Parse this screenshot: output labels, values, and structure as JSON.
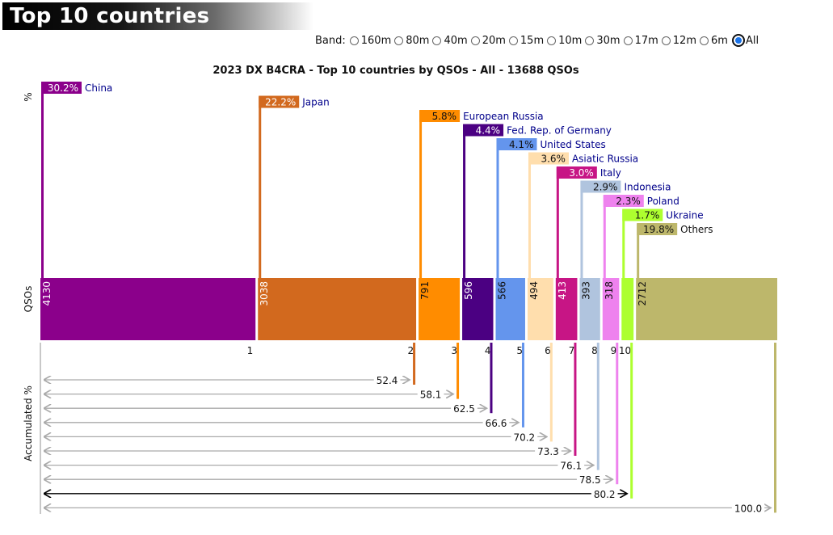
{
  "page": {
    "title": "Top 10 countries"
  },
  "bands": {
    "label": "Band:",
    "options": [
      "160m",
      "80m",
      "40m",
      "20m",
      "15m",
      "10m",
      "30m",
      "17m",
      "12m",
      "6m",
      "All"
    ],
    "selected": "All"
  },
  "chart_data": {
    "type": "bar",
    "title": "2023 DX B4CRA - Top 10 countries by QSOs - All - 13688 QSOs",
    "ylabel_percent": "%",
    "ylabel_qsos": "QSOs",
    "ylabel_accumulated": "Accumulated %",
    "categories": [
      "China",
      "Japan",
      "European Russia",
      "Fed. Rep. of Germany",
      "United States",
      "Asiatic Russia",
      "Italy",
      "Indonesia",
      "Poland",
      "Ukraine",
      "Others"
    ],
    "ranks": [
      "1",
      "2",
      "3",
      "4",
      "5",
      "6",
      "7",
      "8",
      "9",
      "10",
      ""
    ],
    "qsos": [
      4130,
      3038,
      791,
      596,
      566,
      494,
      413,
      393,
      318,
      231,
      2712
    ],
    "qso_labels": [
      "4130",
      "3038",
      "791",
      "596",
      "566",
      "494",
      "413",
      "393",
      "318",
      "",
      "2712"
    ],
    "percent_labels": [
      "30.2%",
      "22.2%",
      "5.8%",
      "4.4%",
      "4.1%",
      "3.6%",
      "3.0%",
      "2.9%",
      "2.3%",
      "1.7%",
      "19.8%"
    ],
    "accumulated": [
      "52.4",
      "58.1",
      "62.5",
      "66.6",
      "70.2",
      "73.3",
      "76.1",
      "78.5",
      "80.2",
      "100.0"
    ],
    "colors": [
      "#8b008b",
      "#d2691e",
      "#ff8c00",
      "#4b0082",
      "#6495ed",
      "#ffdead",
      "#c71585",
      "#b0c4de",
      "#ee82ee",
      "#adff2f",
      "#bdb76b"
    ],
    "text_colors": [
      "#ffffff",
      "#ffffff",
      "#111111",
      "#ffffff",
      "#111111",
      "#111111",
      "#ffffff",
      "#111111",
      "#111111",
      "#111111",
      "#111111"
    ],
    "label_colors": [
      "#00008b",
      "#00008b",
      "#00008b",
      "#00008b",
      "#00008b",
      "#00008b",
      "#00008b",
      "#00008b",
      "#00008b",
      "#00008b",
      "#111111"
    ],
    "total": 13688
  }
}
